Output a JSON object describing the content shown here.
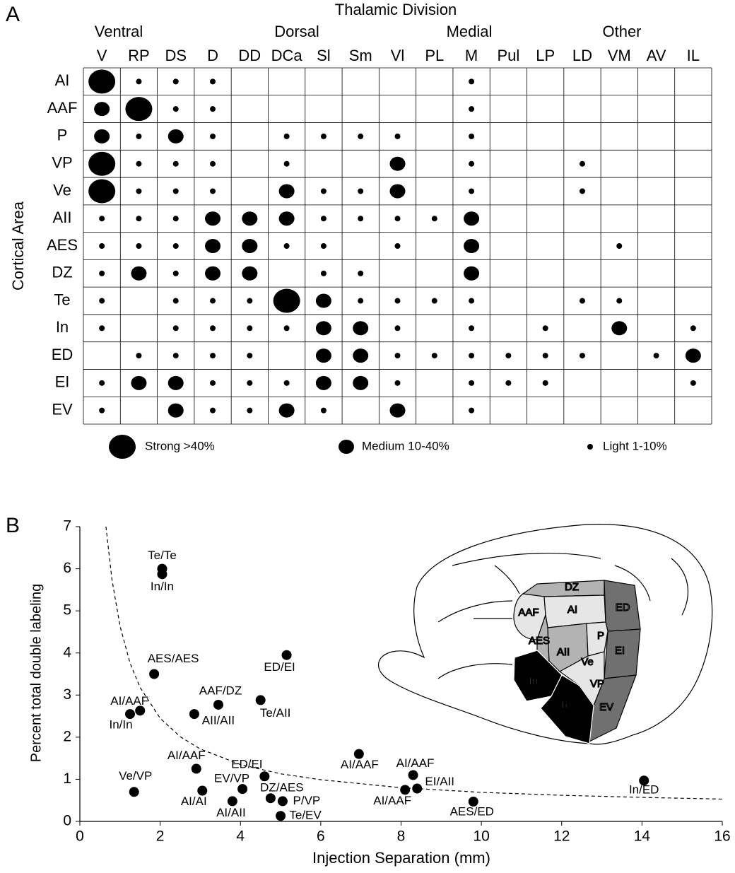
{
  "panel_a": {
    "letter": "A",
    "title": "Thalamic Division",
    "y_label": "Cortical Area",
    "groups": [
      "Ventral",
      "Dorsal",
      "Medial",
      "Other"
    ],
    "columns": [
      "V",
      "RP",
      "DS",
      "D",
      "DD",
      "DCa",
      "Sl",
      "Sm",
      "Vl",
      "PL",
      "M",
      "Pul",
      "LP",
      "LD",
      "VM",
      "AV",
      "IL"
    ],
    "rows": [
      "AI",
      "AAF",
      "P",
      "VP",
      "Ve",
      "AII",
      "AES",
      "DZ",
      "Te",
      "In",
      "ED",
      "EI",
      "EV"
    ],
    "legend": [
      "Strong >40%",
      "Medium 10-40%",
      "Light 1-10%"
    ],
    "cells": [
      [
        0,
        2,
        2,
        2,
        null,
        null,
        null,
        null,
        null,
        null,
        2,
        null,
        null,
        null,
        null,
        null,
        null
      ],
      [
        1,
        0,
        2,
        2,
        null,
        null,
        null,
        null,
        null,
        null,
        2,
        null,
        null,
        null,
        null,
        null,
        null
      ],
      [
        1,
        2,
        1,
        2,
        null,
        2,
        2,
        2,
        2,
        null,
        2,
        null,
        null,
        null,
        null,
        null,
        null
      ],
      [
        0,
        2,
        2,
        2,
        null,
        2,
        null,
        null,
        1,
        null,
        2,
        null,
        null,
        2,
        null,
        null,
        null
      ],
      [
        0,
        2,
        2,
        2,
        null,
        1,
        2,
        2,
        1,
        null,
        2,
        null,
        null,
        2,
        null,
        null,
        null
      ],
      [
        2,
        2,
        2,
        1,
        1,
        1,
        2,
        2,
        2,
        2,
        1,
        null,
        null,
        null,
        null,
        null,
        null
      ],
      [
        2,
        2,
        2,
        1,
        1,
        2,
        2,
        null,
        2,
        null,
        1,
        null,
        null,
        null,
        2,
        null,
        null
      ],
      [
        2,
        1,
        2,
        1,
        1,
        null,
        2,
        2,
        null,
        null,
        1,
        null,
        null,
        null,
        null,
        null,
        null
      ],
      [
        2,
        null,
        2,
        2,
        2,
        0,
        1,
        2,
        2,
        2,
        2,
        null,
        null,
        2,
        2,
        null,
        null
      ],
      [
        2,
        null,
        2,
        2,
        2,
        2,
        1,
        1,
        2,
        null,
        2,
        null,
        2,
        null,
        1,
        null,
        2
      ],
      [
        null,
        2,
        2,
        2,
        2,
        null,
        1,
        1,
        2,
        2,
        2,
        2,
        2,
        2,
        null,
        2,
        1
      ],
      [
        2,
        1,
        1,
        2,
        2,
        2,
        1,
        1,
        2,
        null,
        2,
        2,
        2,
        null,
        null,
        null,
        2
      ],
      [
        2,
        null,
        1,
        2,
        2,
        1,
        2,
        null,
        1,
        null,
        2,
        null,
        null,
        null,
        null,
        null,
        null
      ]
    ]
  },
  "chart_data": {
    "type": "scatter",
    "letter": "B",
    "x_label": "Injection Separation (mm)",
    "y_label": "Percent total double labeling",
    "xlim": [
      0,
      16
    ],
    "xticks": [
      0,
      2,
      4,
      6,
      8,
      10,
      12,
      14,
      16
    ],
    "ylim": [
      0,
      7
    ],
    "yticks": [
      0,
      1,
      2,
      3,
      4,
      5,
      6,
      7
    ],
    "series": [
      {
        "type": "scatter",
        "color": "#000000",
        "x": [
          2.05,
          2.05,
          1.85,
          5.15,
          1.5,
          1.25,
          3.45,
          2.85,
          4.5,
          2.9,
          1.35,
          3.05,
          4.05,
          4.6,
          3.8,
          4.75,
          5.05,
          5.0,
          6.95,
          8.3,
          8.4,
          8.1,
          9.8,
          14.05
        ],
        "values": [
          6.0,
          5.87,
          3.5,
          3.95,
          2.63,
          2.55,
          2.77,
          2.55,
          2.88,
          1.25,
          0.7,
          0.73,
          0.77,
          1.07,
          0.48,
          0.55,
          0.48,
          0.13,
          1.6,
          1.1,
          0.78,
          0.75,
          0.47,
          0.97
        ],
        "labels": [
          "Te/Te",
          "In/In",
          "AES/AES",
          "ED/EI",
          "AI/AAF",
          "In/In",
          "AAF/DZ",
          "AII/AII",
          "Te/AII",
          "AI/AAF",
          "Ve/VP",
          "AI/AI",
          "EV/VP",
          "ED/EI",
          "AI/AII",
          "DZ/AES",
          "P/VP",
          "Te/EV",
          "AI/AAF",
          "AI/AAF",
          "EI/AII",
          "AI/AAF",
          "AES/ED",
          "In/ED"
        ]
      },
      {
        "type": "line",
        "color": "#000000",
        "line_style": "dashed",
        "x": [
          0.65,
          0.8,
          1,
          1.25,
          1.5,
          2,
          2.5,
          3,
          4,
          5,
          6,
          8,
          10,
          12,
          14,
          16
        ],
        "values": [
          7.0,
          5.74,
          4.64,
          3.76,
          3.18,
          2.45,
          2.01,
          1.72,
          1.35,
          1.13,
          0.99,
          0.8,
          0.69,
          0.62,
          0.57,
          0.53
        ]
      }
    ],
    "brain_labels": [
      "DZ",
      "AAF",
      "AI",
      "ED",
      "AES",
      "AII",
      "P",
      "EI",
      "Ve",
      "In",
      "VP",
      "Te",
      "EV"
    ]
  }
}
